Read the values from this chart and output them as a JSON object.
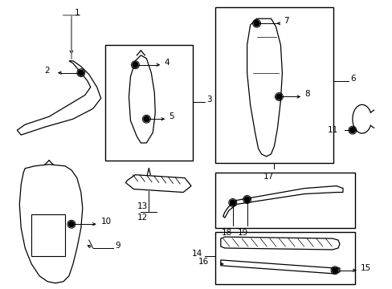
{
  "background_color": "#ffffff",
  "figsize": [
    4.89,
    3.6
  ],
  "dpi": 100
}
